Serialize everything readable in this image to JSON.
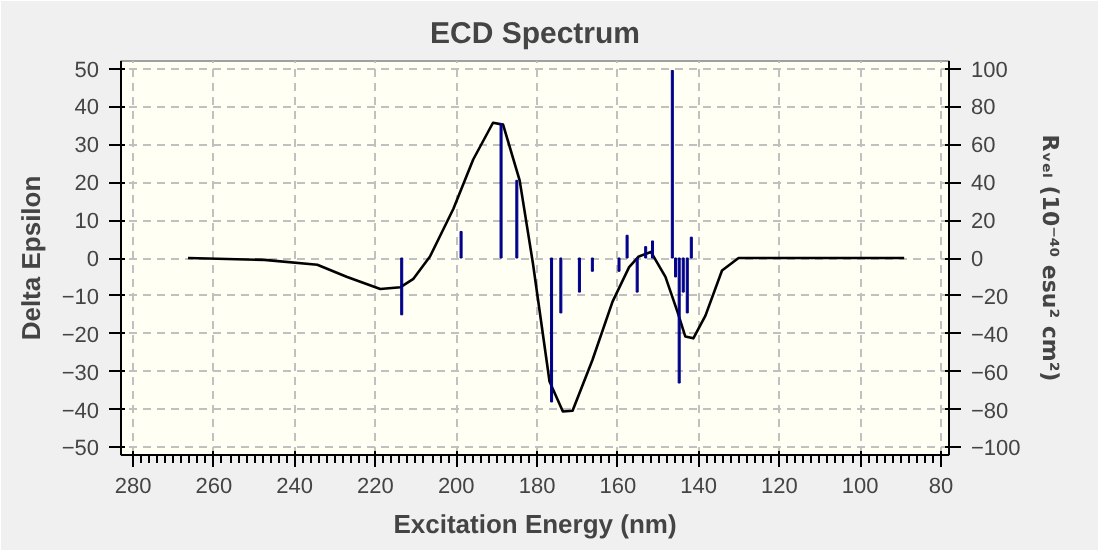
{
  "chart_data": {
    "type": "line",
    "title": "ECD Spectrum",
    "xlabel": "Excitation Energy (nm)",
    "ylabel": "Delta Epsilon",
    "y2label": "Rᵥₑₗ (10⁻⁴⁰ esu² cm²)",
    "xlim": [
      283,
      78
    ],
    "xticks": [
      280,
      260,
      240,
      220,
      200,
      180,
      160,
      140,
      120,
      100,
      80
    ],
    "ylim": [
      -52,
      52
    ],
    "yticks": [
      -50,
      -40,
      -30,
      -20,
      -10,
      0,
      10,
      20,
      30,
      40,
      50
    ],
    "y2lim": [
      -104,
      104
    ],
    "y2ticks": [
      -100,
      -80,
      -60,
      -40,
      -20,
      0,
      20,
      40,
      60,
      80,
      100
    ],
    "grid": true,
    "series": [
      {
        "color": "#000000",
        "x": [
          266.4,
          247.5,
          234.4,
          227,
          218.8,
          213.8,
          210.6,
          206.5,
          200.7,
          195.8,
          190.9,
          188.4,
          184.3,
          181,
          176.9,
          173.6,
          171.2,
          166.3,
          161.3,
          157.2,
          154.8,
          151.8,
          148.2,
          145.2,
          143.3,
          141.3,
          138.3,
          134.2,
          130.1,
          89.1
        ],
        "values": [
          0,
          -0.5,
          -1.8,
          -5,
          -8.2,
          -7.7,
          -5.5,
          0.4,
          13,
          26,
          35.7,
          35.2,
          20.5,
          -1.5,
          -32.6,
          -40.5,
          -40.3,
          -27,
          -11.5,
          -2.4,
          0.4,
          1.6,
          -5,
          -14.3,
          -20.7,
          -21.2,
          -15.2,
          -3.3,
          0,
          0
        ]
      },
      {
        "type": "bar",
        "axis": "y2",
        "color": "#00008b",
        "x": [
          213.5,
          198.8,
          188.9,
          185,
          176.4,
          174.1,
          169.5,
          166.3,
          159.7,
          157.7,
          155.2,
          153.1,
          151.4,
          146.5,
          145.7,
          144.8,
          143.8,
          142.8,
          141.8
        ],
        "values": [
          -30,
          14,
          71,
          41,
          -76,
          -29,
          -18,
          -7,
          -7,
          12,
          -18,
          6,
          9,
          99,
          -10,
          -66,
          -18,
          -29,
          11
        ]
      }
    ]
  }
}
